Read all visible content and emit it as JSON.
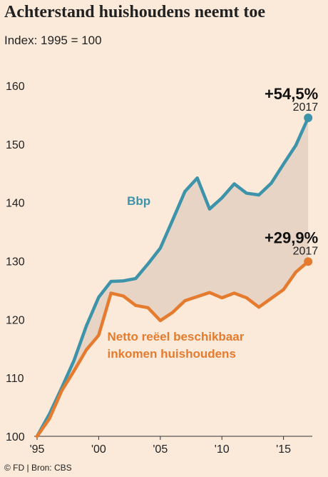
{
  "title": "Achterstand huishoudens neemt toe",
  "subtitle": "Index: 1995 = 100",
  "source": "© FD | Bron: CBS",
  "chart_data": {
    "type": "line",
    "x": [
      1995,
      1996,
      1997,
      1998,
      1999,
      2000,
      2001,
      2002,
      2003,
      2004,
      2005,
      2006,
      2007,
      2008,
      2009,
      2010,
      2011,
      2012,
      2013,
      2014,
      2015,
      2016,
      2017
    ],
    "series": [
      {
        "name": "Bbp",
        "color": "#3d93aa",
        "values": [
          100,
          103.8,
          108.3,
          113,
          118.9,
          123.8,
          126.5,
          126.6,
          127,
          129.5,
          132.2,
          137,
          141.9,
          144.2,
          138.9,
          140.8,
          143.2,
          141.6,
          141.3,
          143.3,
          146.6,
          149.8,
          154.5
        ],
        "end_label": "+54,5%",
        "end_year": "2017"
      },
      {
        "name": "Netto reëel beschikbaar inkomen huishoudens",
        "label_lines": [
          "Netto reëel beschikbaar",
          "inkomen huishoudens"
        ],
        "color": "#e57b2e",
        "values": [
          100,
          103,
          107.8,
          111.2,
          114.8,
          117.3,
          124.5,
          124,
          122.4,
          122,
          119.8,
          121.2,
          123.2,
          123.9,
          124.6,
          123.7,
          124.5,
          123.7,
          122.1,
          123.6,
          125.1,
          128.1,
          129.9
        ],
        "end_label": "+29,9%",
        "end_year": "2017"
      }
    ],
    "fill_between": {
      "color": "#e7d4c5"
    },
    "x_ticks": [
      1995,
      2000,
      2005,
      2010,
      2015
    ],
    "x_tick_labels": [
      "'95",
      "'00",
      "'05",
      "'10",
      "'15"
    ],
    "y_ticks": [
      100,
      110,
      120,
      130,
      140,
      150,
      160
    ],
    "xlim": [
      1995,
      2017.8
    ],
    "ylim": [
      100,
      160
    ],
    "grid": false
  }
}
